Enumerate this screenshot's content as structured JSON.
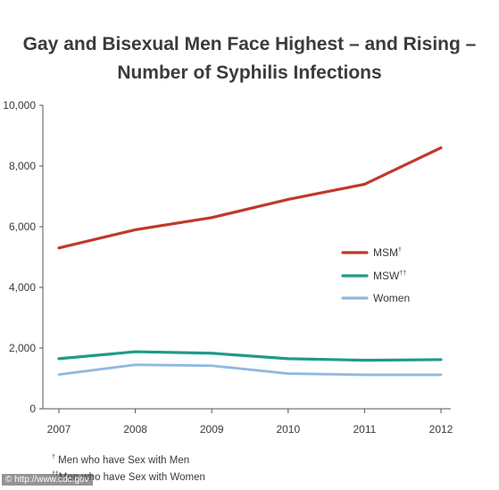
{
  "chart_data": {
    "type": "line",
    "title": "Gay and Bisexual Men Face Highest – and Rising – Number of Syphilis Infections",
    "title_lines": [
      "Gay and Bisexual Men Face Highest – and Rising –",
      "Number of Syphilis Infections"
    ],
    "x": [
      "2007",
      "2008",
      "2009",
      "2010",
      "2011",
      "2012"
    ],
    "ylim": [
      0,
      10000
    ],
    "yticks": [
      0,
      2000,
      4000,
      6000,
      8000,
      10000
    ],
    "ytick_labels": [
      "0",
      "2,000",
      "4,000",
      "6,000",
      "8,000",
      "10,000"
    ],
    "grid": false,
    "legend_position": "right",
    "series": [
      {
        "name": "MSM",
        "marker": "†",
        "color": "#c0392b",
        "values": [
          5300,
          5900,
          6300,
          6900,
          7400,
          8600
        ]
      },
      {
        "name": "MSW",
        "marker": "††",
        "color": "#1f9a8a",
        "values": [
          1650,
          1880,
          1830,
          1650,
          1600,
          1620
        ]
      },
      {
        "name": "Women",
        "marker": "",
        "color": "#8fb9e0",
        "values": [
          1130,
          1450,
          1420,
          1160,
          1120,
          1120
        ]
      }
    ]
  },
  "footnotes": [
    {
      "marker": "†",
      "text": "Men who have Sex with Men"
    },
    {
      "marker": "††",
      "text": "Men who have Sex with Women"
    }
  ],
  "watermark": "© http://www.cdc.gov"
}
